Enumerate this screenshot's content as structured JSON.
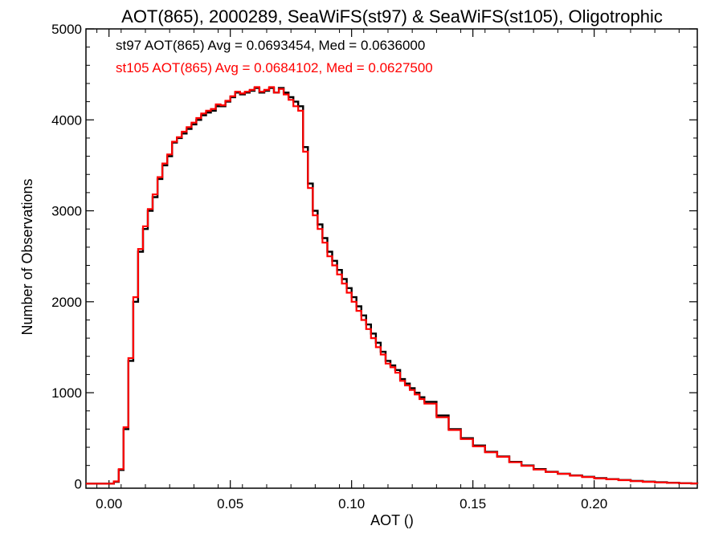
{
  "chart_data": {
    "type": "line",
    "title": "AOT(865), 2000289, SeaWiFS(st97) & SeaWiFS(st105), Oligotrophic",
    "xlabel": "AOT ()",
    "ylabel": "Number of Observations",
    "xlim": [
      -0.0095,
      0.2425
    ],
    "ylim": [
      -50,
      5000
    ],
    "x_ticks": [
      0.0,
      0.05,
      0.1,
      0.15,
      0.2
    ],
    "x_tick_labels": [
      "0.00",
      "0.05",
      "0.10",
      "0.15",
      "0.20"
    ],
    "y_ticks": [
      0,
      1000,
      2000,
      3000,
      4000,
      5000
    ],
    "y_tick_labels": [
      "0",
      "1000",
      "2000",
      "3000",
      "4000",
      "5000"
    ],
    "grid": false,
    "legend_position": "top-left",
    "line_style": "step",
    "annotations": [
      {
        "text": "st97 AOT(865) Avg = 0.0693454, Med = 0.0636000",
        "color": "#000000"
      },
      {
        "text": "st105 AOT(865) Avg = 0.0684102, Med = 0.0627500",
        "color": "#ff0000"
      }
    ],
    "x": [
      -0.0095,
      0.0,
      0.002,
      0.004,
      0.006,
      0.008,
      0.01,
      0.012,
      0.014,
      0.016,
      0.018,
      0.02,
      0.022,
      0.024,
      0.026,
      0.028,
      0.03,
      0.032,
      0.034,
      0.036,
      0.038,
      0.04,
      0.042,
      0.044,
      0.046,
      0.048,
      0.05,
      0.052,
      0.054,
      0.056,
      0.058,
      0.06,
      0.062,
      0.064,
      0.066,
      0.068,
      0.07,
      0.072,
      0.074,
      0.076,
      0.078,
      0.08,
      0.082,
      0.084,
      0.086,
      0.088,
      0.09,
      0.092,
      0.094,
      0.096,
      0.098,
      0.1,
      0.102,
      0.104,
      0.106,
      0.108,
      0.11,
      0.112,
      0.114,
      0.116,
      0.118,
      0.12,
      0.122,
      0.124,
      0.126,
      0.128,
      0.13,
      0.135,
      0.14,
      0.145,
      0.15,
      0.155,
      0.16,
      0.165,
      0.17,
      0.175,
      0.18,
      0.185,
      0.19,
      0.195,
      0.2,
      0.205,
      0.21,
      0.215,
      0.22,
      0.225,
      0.23,
      0.235,
      0.24,
      0.2425
    ],
    "series": [
      {
        "name": "st97",
        "color": "#000000",
        "values": [
          0,
          0,
          20,
          150,
          600,
          1350,
          2000,
          2550,
          2800,
          3000,
          3150,
          3350,
          3500,
          3600,
          3750,
          3800,
          3850,
          3900,
          3950,
          4000,
          4050,
          4080,
          4100,
          4150,
          4150,
          4200,
          4250,
          4300,
          4280,
          4300,
          4320,
          4350,
          4300,
          4320,
          4350,
          4300,
          4350,
          4300,
          4250,
          4200,
          4150,
          3700,
          3300,
          3000,
          2850,
          2700,
          2550,
          2450,
          2350,
          2250,
          2150,
          2050,
          1950,
          1850,
          1750,
          1650,
          1550,
          1450,
          1350,
          1300,
          1250,
          1150,
          1100,
          1050,
          1000,
          950,
          900,
          750,
          600,
          500,
          420,
          350,
          300,
          240,
          200,
          160,
          130,
          110,
          90,
          75,
          60,
          50,
          40,
          30,
          22,
          15,
          10,
          5,
          2,
          0
        ]
      },
      {
        "name": "st105",
        "color": "#ff0000",
        "values": [
          0,
          0,
          25,
          160,
          620,
          1380,
          2050,
          2580,
          2830,
          3020,
          3180,
          3370,
          3520,
          3620,
          3760,
          3810,
          3870,
          3920,
          3970,
          4020,
          4070,
          4100,
          4120,
          4170,
          4160,
          4210,
          4260,
          4310,
          4290,
          4310,
          4330,
          4360,
          4310,
          4330,
          4360,
          4300,
          4340,
          4280,
          4220,
          4150,
          4100,
          3650,
          3250,
          2950,
          2800,
          2650,
          2500,
          2400,
          2300,
          2200,
          2100,
          2000,
          1900,
          1800,
          1700,
          1600,
          1500,
          1420,
          1320,
          1280,
          1220,
          1130,
          1080,
          1030,
          980,
          930,
          880,
          730,
          590,
          490,
          410,
          345,
          295,
          235,
          195,
          155,
          128,
          108,
          88,
          73,
          58,
          48,
          38,
          28,
          20,
          14,
          9,
          5,
          2,
          0
        ]
      }
    ]
  }
}
